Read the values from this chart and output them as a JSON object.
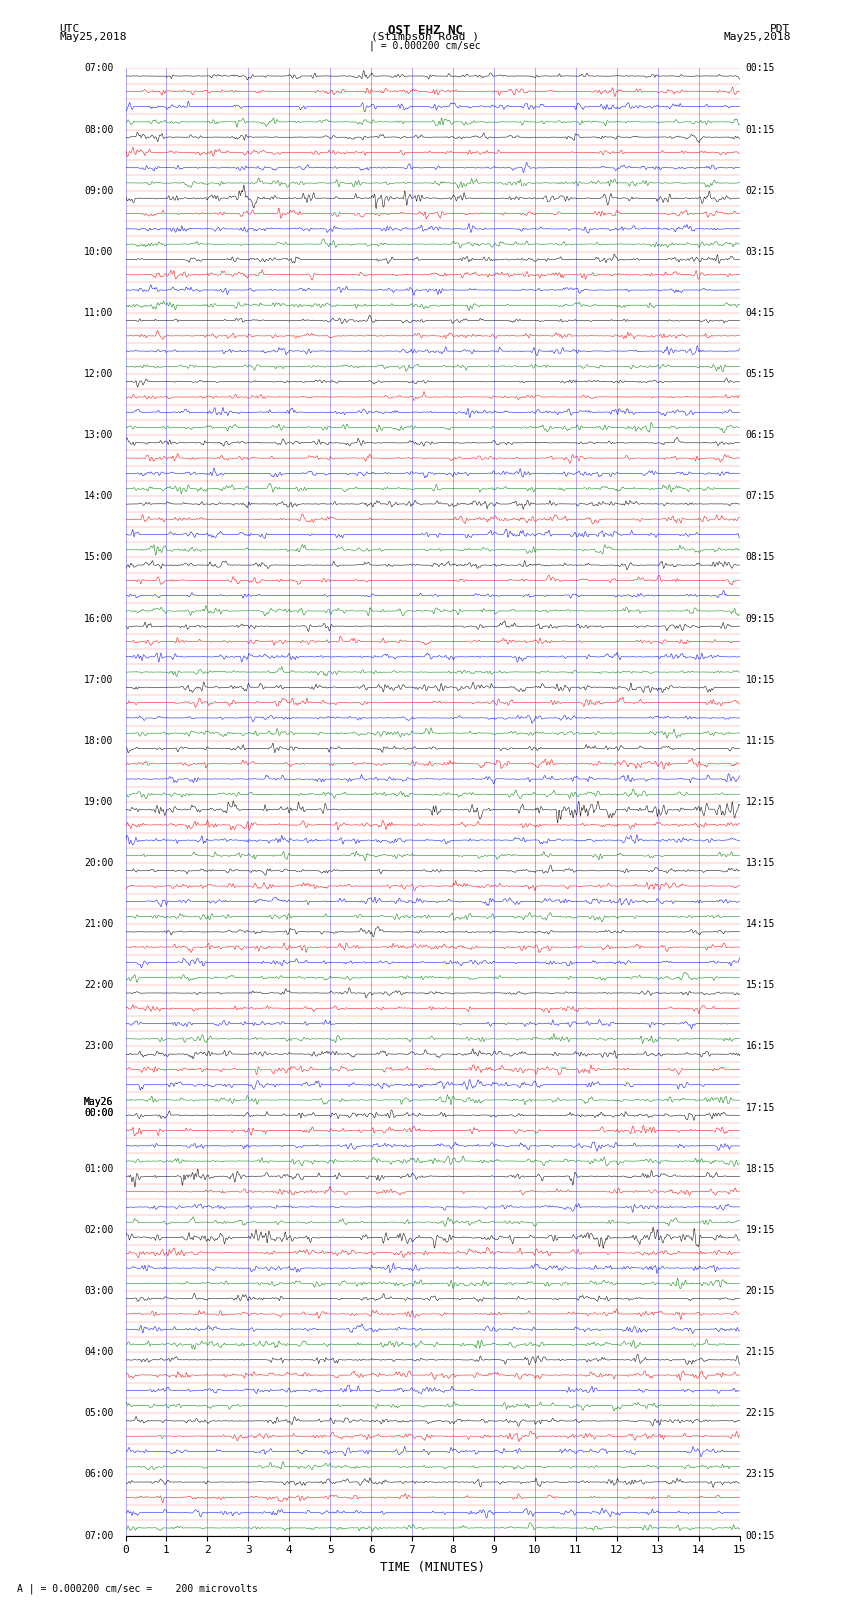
{
  "title_line1": "OST EHZ NC",
  "title_line2": "(Stimpson Road )",
  "scale_label": "| = 0.000200 cm/sec",
  "left_date": "UTC\nMay25,2018",
  "right_date": "PDT\nMay25,2018",
  "bottom_label": "TIME (MINUTES)",
  "bottom_note": "A | = 0.000200 cm/sec =    200 microvolts",
  "x_ticks": [
    0,
    1,
    2,
    3,
    4,
    5,
    6,
    7,
    8,
    9,
    10,
    11,
    12,
    13,
    14,
    15
  ],
  "x_min": 0,
  "x_max": 15,
  "bg_color": "#ffffff",
  "trace_colors": [
    "black",
    "red",
    "blue",
    "green"
  ],
  "grid_color_minor": "#ff0000",
  "grid_color_major": "#0000ff",
  "left_times_utc": [
    "07:00",
    "",
    "",
    "",
    "08:00",
    "",
    "",
    "",
    "09:00",
    "",
    "",
    "",
    "10:00",
    "",
    "",
    "",
    "11:00",
    "",
    "",
    "",
    "12:00",
    "",
    "",
    "",
    "13:00",
    "",
    "",
    "",
    "14:00",
    "",
    "",
    "",
    "15:00",
    "",
    "",
    "",
    "16:00",
    "",
    "",
    "",
    "17:00",
    "",
    "",
    "",
    "18:00",
    "",
    "",
    "",
    "19:00",
    "",
    "",
    "",
    "20:00",
    "",
    "",
    "",
    "21:00",
    "",
    "",
    "",
    "22:00",
    "",
    "",
    "",
    "23:00",
    "",
    "",
    "",
    "May26\n00:00",
    "",
    "",
    "",
    "01:00",
    "",
    "",
    "",
    "02:00",
    "",
    "",
    "",
    "03:00",
    "",
    "",
    "",
    "04:00",
    "",
    "",
    "",
    "05:00",
    "",
    "",
    "",
    "06:00",
    "",
    "",
    "",
    "07:00"
  ],
  "right_times_pdt": [
    "00:15",
    "",
    "",
    "",
    "01:15",
    "",
    "",
    "",
    "02:15",
    "",
    "",
    "",
    "03:15",
    "",
    "",
    "",
    "04:15",
    "",
    "",
    "",
    "05:15",
    "",
    "",
    "",
    "06:15",
    "",
    "",
    "",
    "07:15",
    "",
    "",
    "",
    "08:15",
    "",
    "",
    "",
    "09:15",
    "",
    "",
    "",
    "10:15",
    "",
    "",
    "",
    "11:15",
    "",
    "",
    "",
    "12:15",
    "",
    "",
    "",
    "13:15",
    "",
    "",
    "",
    "14:15",
    "",
    "",
    "",
    "15:15",
    "",
    "",
    "",
    "16:15",
    "",
    "",
    "",
    "17:15",
    "",
    "",
    "",
    "18:15",
    "",
    "",
    "",
    "19:15",
    "",
    "",
    "",
    "20:15",
    "",
    "",
    "",
    "21:15",
    "",
    "",
    "",
    "22:15",
    "",
    "",
    "",
    "23:15",
    "",
    "",
    "",
    "00:15"
  ],
  "num_rows": 96,
  "traces_per_row": 4,
  "noise_base": 0.3,
  "figwidth": 8.5,
  "figheight": 16.13
}
